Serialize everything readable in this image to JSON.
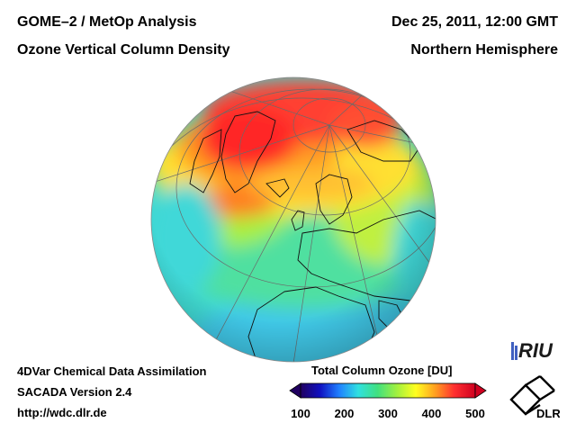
{
  "header": {
    "title_left_1": "GOME–2 / MetOp Analysis",
    "title_left_2": "Ozone Vertical Column Density",
    "title_right_1": "Dec 25, 2011, 12:00 GMT",
    "title_right_2": "Northern Hemisphere"
  },
  "footer": {
    "line1": "4DVar Chemical Data Assimilation",
    "line2": "SACADA Version 2.4",
    "line3": "http://wdc.dlr.de"
  },
  "colorbar": {
    "title": "Total Column Ozone [DU]",
    "min": 100,
    "max": 500,
    "ticks": [
      "100",
      "200",
      "300",
      "400",
      "500"
    ],
    "colors": [
      "#200060",
      "#1010c0",
      "#2080ff",
      "#30e0e0",
      "#40e080",
      "#a0f040",
      "#ffff20",
      "#ffa020",
      "#ff3030",
      "#d00020"
    ]
  },
  "logos": {
    "riu_text": "RIU",
    "dlr_text": "DLR"
  },
  "map": {
    "projection": "orthographic",
    "hemisphere": "Northern Hemisphere"
  }
}
